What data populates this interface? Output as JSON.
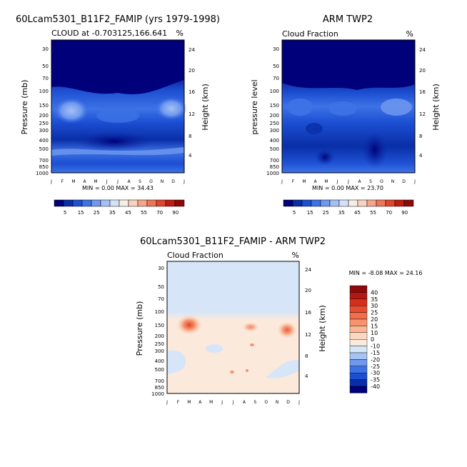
{
  "chart_data": [
    {
      "type": "heatmap",
      "title": "60Lcam5301_B11F2_FAMIP (yrs 1979-1998)",
      "subtitle_left": "CLOUD at -0.703125,166.641",
      "subtitle_right": "%",
      "ylabel": "Pressure (mb)",
      "ylabel_right": "Height (km)",
      "stats": "MIN =    0.00 MAX =   34.43",
      "months": [
        "J",
        "F",
        "M",
        "A",
        "M",
        "J",
        "J",
        "A",
        "S",
        "O",
        "N",
        "D",
        "J"
      ],
      "pressure_ticks": [
        "30",
        "50",
        "70",
        "100",
        "150",
        "200",
        "250",
        "300",
        "400",
        "500",
        "700",
        "850",
        "1000"
      ],
      "height_ticks": [
        "24",
        "20",
        "16",
        "12",
        "8",
        "4"
      ],
      "colorbar_levels": [
        "5",
        "15",
        "25",
        "35",
        "45",
        "55",
        "70",
        "90"
      ],
      "colorbar_colors": [
        "#00007a",
        "#0a2ea8",
        "#1c4fd2",
        "#3d72e6",
        "#6f98ee",
        "#a6c0f3",
        "#d4e2f8",
        "#f6efe6",
        "#fbd2c0",
        "#f6a58a",
        "#ee7656",
        "#e0452c",
        "#c01c14",
        "#8c0a0a"
      ]
    },
    {
      "type": "heatmap",
      "title": "ARM TWP2",
      "subtitle_left": "Cloud Fraction",
      "subtitle_right": "%",
      "ylabel": "pressure level",
      "ylabel_right": "Height (km)",
      "stats": "MIN =    0.00 MAX =   23.70",
      "months": [
        "J",
        "F",
        "M",
        "A",
        "M",
        "J",
        "J",
        "A",
        "S",
        "O",
        "N",
        "D",
        "J"
      ],
      "pressure_ticks": [
        "30",
        "50",
        "70",
        "100",
        "150",
        "200",
        "250",
        "300",
        "400",
        "500",
        "700",
        "850",
        "1000"
      ],
      "height_ticks": [
        "24",
        "20",
        "16",
        "12",
        "8",
        "4"
      ],
      "colorbar_levels": [
        "5",
        "15",
        "25",
        "35",
        "45",
        "55",
        "70",
        "90"
      ]
    },
    {
      "type": "heatmap",
      "title": "60Lcam5301_B11F2_FAMIP - ARM TWP2",
      "subtitle_left": "Cloud Fraction",
      "subtitle_right": "%",
      "ylabel": "Pressure (mb)",
      "ylabel_right": "Height (km)",
      "stats": "MIN =   -8.08 MAX =   24.16",
      "months": [
        "J",
        "F",
        "M",
        "A",
        "M",
        "J",
        "J",
        "A",
        "S",
        "O",
        "N",
        "D",
        "J"
      ],
      "pressure_ticks": [
        "30",
        "50",
        "70",
        "100",
        "150",
        "200",
        "250",
        "300",
        "400",
        "500",
        "700",
        "850",
        "1000"
      ],
      "height_ticks": [
        "24",
        "20",
        "16",
        "12",
        "8",
        "4"
      ],
      "colorbar_levels": [
        "40",
        "35",
        "30",
        "25",
        "20",
        "15",
        "10",
        "0",
        "-10",
        "-15",
        "-20",
        "-25",
        "-30",
        "-35",
        "-40"
      ],
      "colorbar_colors": [
        "#8c0a0a",
        "#b31812",
        "#d2301d",
        "#e64d30",
        "#f06e4a",
        "#f6946c",
        "#fab795",
        "#fbd7c2",
        "#fbe9dc",
        "#d6e6f8",
        "#a6c4f3",
        "#6f98ee",
        "#3d72e6",
        "#1c4fd2",
        "#0a2ea8",
        "#00007a"
      ]
    }
  ]
}
